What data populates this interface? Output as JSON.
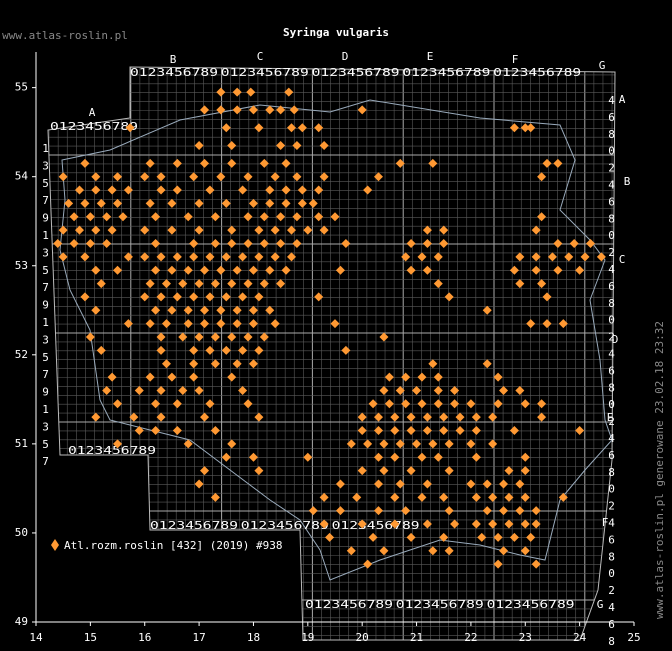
{
  "title": "Syringa vulgaris",
  "website": "www.atlas-roslin.pl",
  "footer": "www.atlas-roslin.pl generowane 23.02.18 23:32",
  "legend": "Atl.rozm.roslin [432] (2019) #938",
  "xlim": [
    14,
    25
  ],
  "xticks": [
    14,
    15,
    16,
    17,
    18,
    19,
    20,
    21,
    22,
    23,
    24,
    25
  ],
  "ylim": [
    49,
    55.4
  ],
  "yticks": [
    49,
    50,
    51,
    52,
    53,
    54,
    55
  ],
  "column_letters": [
    "A",
    "B",
    "C",
    "D",
    "E",
    "F",
    "G"
  ],
  "digits": "0123456789",
  "left_digits": "1357913579135791357",
  "right_digits": "468024680246802468024680246802468",
  "points": [
    {
      "lat": 54.95,
      "lon": [
        17.4,
        17.7,
        17.95,
        18.65
      ]
    },
    {
      "lat": 54.75,
      "lon": [
        17.1,
        17.4,
        17.7,
        18.0,
        18.3,
        18.5,
        18.75,
        20.0
      ]
    },
    {
      "lat": 54.55,
      "lon": [
        15.73,
        17.5,
        18.1,
        18.7,
        18.9,
        19.2,
        22.8,
        23.0,
        23.1
      ]
    },
    {
      "lat": 54.35,
      "lon": [
        17.0,
        17.6,
        18.5,
        18.8,
        19.3
      ]
    },
    {
      "lat": 54.15,
      "lon": [
        14.9,
        16.1,
        16.6,
        17.1,
        17.6,
        18.2,
        18.6,
        20.7,
        21.3,
        23.4,
        23.6
      ]
    },
    {
      "lat": 54.0,
      "lon": [
        14.5,
        15.1,
        15.5,
        16.0,
        16.3,
        16.9,
        17.4,
        17.9,
        18.4,
        18.8,
        19.3,
        20.3,
        23.3
      ]
    },
    {
      "lat": 53.85,
      "lon": [
        14.8,
        15.1,
        15.4,
        15.7,
        16.3,
        16.6,
        17.2,
        17.8,
        18.3,
        18.6,
        18.9,
        19.2,
        20.1
      ]
    },
    {
      "lat": 53.7,
      "lon": [
        14.6,
        14.9,
        15.2,
        15.5,
        16.1,
        16.5,
        17.0,
        17.5,
        18.0,
        18.3,
        18.6,
        18.9,
        19.1
      ]
    },
    {
      "lat": 53.55,
      "lon": [
        14.7,
        15.0,
        15.3,
        15.6,
        16.2,
        16.8,
        17.3,
        17.9,
        18.2,
        18.5,
        18.8,
        19.2,
        19.5,
        23.3
      ]
    },
    {
      "lat": 53.4,
      "lon": [
        14.5,
        14.8,
        15.1,
        15.4,
        16.0,
        16.5,
        17.0,
        17.6,
        18.1,
        18.4,
        18.7,
        19.0,
        19.3,
        21.2,
        21.5,
        23.2
      ]
    },
    {
      "lat": 53.25,
      "lon": [
        14.4,
        14.7,
        15.0,
        15.3,
        16.2,
        16.9,
        17.3,
        17.6,
        17.9,
        18.2,
        18.5,
        18.8,
        19.7,
        20.9,
        21.2,
        21.5,
        23.6,
        23.9,
        24.2
      ]
    },
    {
      "lat": 53.1,
      "lon": [
        14.5,
        14.9,
        15.7,
        16.0,
        16.3,
        16.6,
        16.9,
        17.2,
        17.5,
        17.8,
        18.1,
        18.4,
        18.7,
        20.8,
        21.1,
        21.4,
        22.9,
        23.2,
        23.5,
        23.8,
        24.1,
        24.4
      ]
    },
    {
      "lat": 52.95,
      "lon": [
        15.1,
        15.5,
        16.2,
        16.5,
        16.8,
        17.1,
        17.4,
        17.7,
        18.0,
        18.3,
        18.6,
        19.6,
        20.9,
        21.2,
        22.8,
        23.2,
        23.6,
        24.0
      ]
    },
    {
      "lat": 52.8,
      "lon": [
        15.2,
        16.1,
        16.4,
        16.7,
        17.0,
        17.3,
        17.6,
        17.9,
        18.2,
        18.5,
        21.4,
        22.9,
        23.3
      ]
    },
    {
      "lat": 52.65,
      "lon": [
        14.9,
        16.0,
        16.3,
        16.6,
        16.9,
        17.2,
        17.5,
        17.8,
        18.1,
        19.2,
        21.6,
        23.4
      ]
    },
    {
      "lat": 52.5,
      "lon": [
        15.1,
        16.2,
        16.5,
        16.8,
        17.1,
        17.4,
        17.7,
        18.0,
        18.3,
        22.3
      ]
    },
    {
      "lat": 52.35,
      "lon": [
        15.7,
        16.1,
        16.4,
        16.8,
        17.1,
        17.4,
        17.7,
        18.0,
        18.4,
        19.5,
        23.1,
        23.4,
        23.7
      ]
    },
    {
      "lat": 52.2,
      "lon": [
        15.0,
        16.3,
        16.7,
        17.0,
        17.3,
        17.6,
        17.9,
        18.2,
        20.4
      ]
    },
    {
      "lat": 52.05,
      "lon": [
        15.2,
        16.3,
        16.9,
        17.2,
        17.5,
        17.8,
        18.1,
        19.7
      ]
    },
    {
      "lat": 51.9,
      "lon": [
        16.4,
        16.9,
        17.3,
        17.7,
        18.0,
        21.3,
        22.3
      ]
    },
    {
      "lat": 51.75,
      "lon": [
        15.4,
        16.1,
        16.5,
        16.9,
        17.6,
        20.5,
        20.8,
        21.1,
        21.4,
        22.5
      ]
    },
    {
      "lat": 51.6,
      "lon": [
        15.3,
        15.9,
        16.3,
        16.7,
        17.0,
        17.8,
        20.4,
        20.7,
        21.0,
        21.4,
        21.7,
        22.6,
        22.9
      ]
    },
    {
      "lat": 51.45,
      "lon": [
        15.5,
        16.2,
        16.6,
        17.2,
        17.9,
        20.2,
        20.5,
        20.8,
        21.1,
        21.4,
        21.7,
        22.0,
        22.5,
        23.0,
        23.3
      ]
    },
    {
      "lat": 51.3,
      "lon": [
        15.1,
        15.8,
        16.3,
        17.1,
        18.1,
        20.0,
        20.3,
        20.6,
        20.9,
        21.2,
        21.5,
        21.8,
        22.1,
        22.4,
        23.3
      ]
    },
    {
      "lat": 51.15,
      "lon": [
        15.9,
        16.2,
        16.6,
        17.3,
        20.0,
        20.3,
        20.6,
        20.9,
        21.2,
        21.5,
        21.8,
        22.1,
        22.8,
        24.0
      ]
    },
    {
      "lat": 51.0,
      "lon": [
        15.5,
        16.8,
        17.6,
        19.8,
        20.1,
        20.4,
        20.7,
        21.0,
        21.3,
        21.6,
        22.0,
        22.4
      ]
    },
    {
      "lat": 50.85,
      "lon": [
        17.5,
        18.0,
        19.0,
        20.3,
        20.6,
        21.1,
        21.4,
        22.1,
        23.0
      ]
    },
    {
      "lat": 50.7,
      "lon": [
        17.1,
        18.1,
        20.0,
        20.4,
        20.9,
        21.6,
        22.7,
        23.0
      ]
    },
    {
      "lat": 50.55,
      "lon": [
        17.0,
        19.6,
        20.3,
        20.7,
        21.2,
        22.0,
        22.3,
        22.6,
        22.9
      ]
    },
    {
      "lat": 50.4,
      "lon": [
        17.3,
        19.3,
        19.9,
        20.6,
        21.1,
        21.5,
        22.1,
        22.4,
        22.7,
        23.0,
        23.7
      ]
    },
    {
      "lat": 50.25,
      "lon": [
        19.1,
        19.6,
        20.3,
        20.8,
        21.6,
        22.3,
        22.6,
        22.9,
        23.2
      ]
    },
    {
      "lat": 50.1,
      "lon": [
        19.3,
        20.0,
        20.6,
        21.2,
        21.7,
        22.1,
        22.4,
        22.7,
        23.0,
        23.2
      ]
    },
    {
      "lat": 49.95,
      "lon": [
        19.4,
        20.2,
        20.9,
        21.5,
        22.2,
        22.5,
        22.8,
        23.1
      ]
    },
    {
      "lat": 49.8,
      "lon": [
        19.8,
        20.4,
        21.3,
        21.6,
        22.6,
        23.0
      ]
    },
    {
      "lat": 49.65,
      "lon": [
        20.1,
        22.5,
        23.2
      ]
    }
  ]
}
